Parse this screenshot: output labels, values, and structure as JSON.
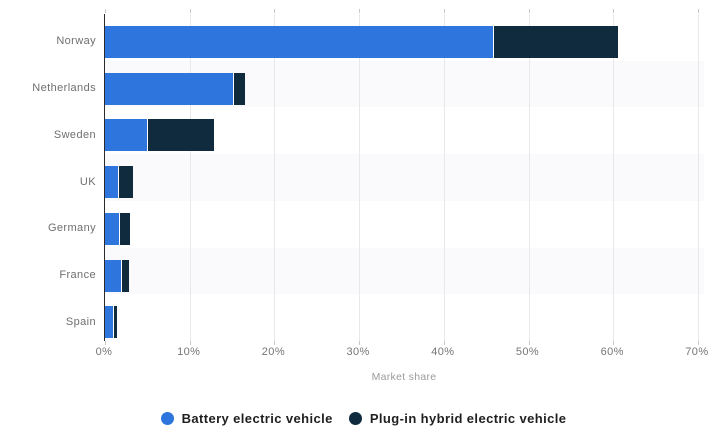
{
  "chart_data": {
    "type": "bar",
    "orientation": "horizontal",
    "stacked": true,
    "title": "",
    "xlabel": "Market share",
    "categories": [
      "Norway",
      "Netherlands",
      "Sweden",
      "UK",
      "Germany",
      "France",
      "Spain"
    ],
    "series": [
      {
        "name": "Battery electric vehicle",
        "color": "#2e75dd",
        "values": [
          45.8,
          15.1,
          4.9,
          1.5,
          1.6,
          1.9,
          0.9
        ]
      },
      {
        "name": "Plug-in hybrid electric vehicle",
        "color": "#0f2b3d",
        "values": [
          14.8,
          1.4,
          8.0,
          1.8,
          1.3,
          0.9,
          0.5
        ]
      }
    ],
    "x_ticks": [
      "0%",
      "10%",
      "20%",
      "30%",
      "40%",
      "50%",
      "60%",
      "70%"
    ],
    "xlim": [
      0,
      70
    ],
    "grid": true,
    "legend_position": "bottom"
  },
  "style": {
    "band_color": "#faf9fc",
    "gridline_color": "#e8e8e8",
    "axis_line_color": "#2b2b2b",
    "label_color": "#6f6f6f",
    "axis_title_color": "#9b9b9b",
    "legend_text_color": "#1f1f1f",
    "background": "#ffffff"
  }
}
